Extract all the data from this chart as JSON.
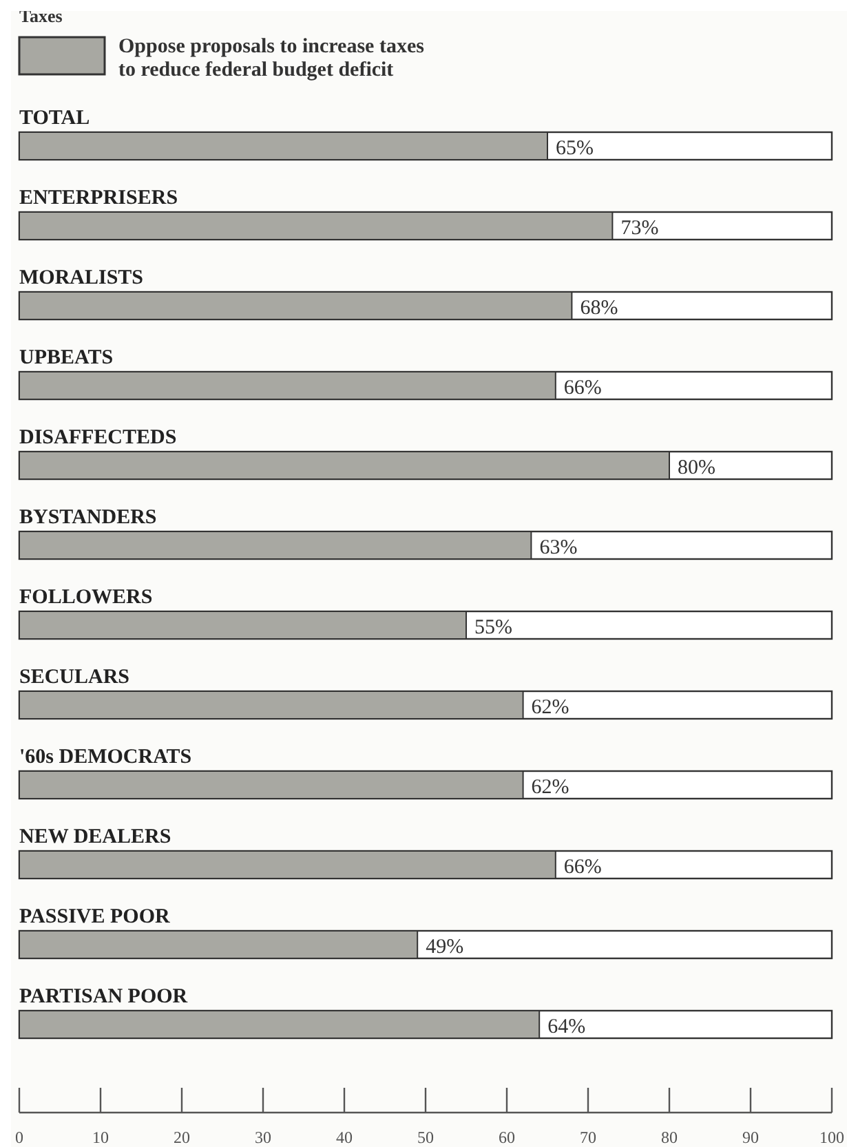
{
  "chart_data": {
    "type": "bar",
    "orientation": "horizontal",
    "title": "Taxes",
    "categories": [
      "TOTAL",
      "ENTERPRISERS",
      "MORALISTS",
      "UPBEATS",
      "DISAFFECTEDS",
      "BYSTANDERS",
      "FOLLOWERS",
      "SECULARS",
      "'60s DEMOCRATS",
      "NEW DEALERS",
      "PASSIVE POOR",
      "PARTISAN POOR"
    ],
    "series": [
      {
        "name": "Oppose proposals to increase taxes to reduce federal budget deficit",
        "color": "#a8a8a2",
        "values": [
          65,
          73,
          68,
          66,
          80,
          63,
          55,
          62,
          62,
          66,
          49,
          64
        ],
        "value_labels": [
          "65%",
          "73%",
          "68%",
          "66%",
          "80%",
          "63%",
          "55%",
          "62%",
          "62%",
          "66%",
          "49%",
          "64%"
        ]
      }
    ],
    "xlim": [
      0,
      100
    ],
    "xticks": [
      0,
      10,
      20,
      30,
      40,
      50,
      60,
      70,
      80,
      90,
      100
    ],
    "legend": "top left",
    "grid": false
  }
}
